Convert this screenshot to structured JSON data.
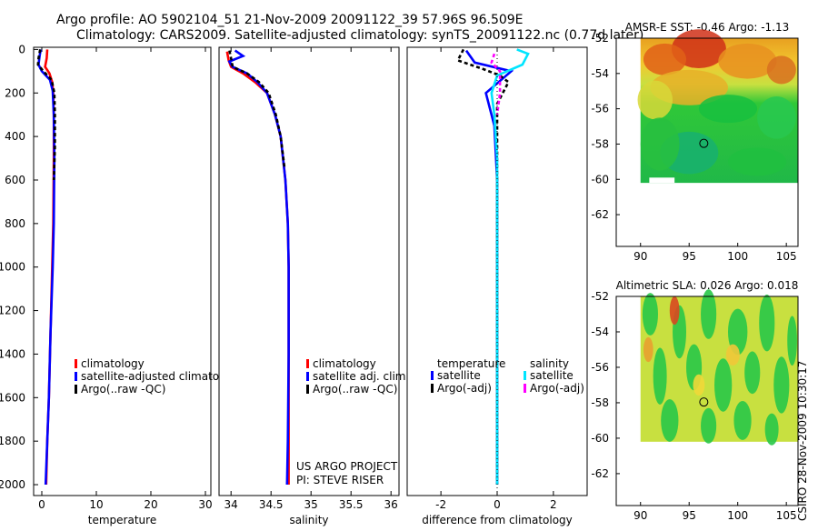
{
  "header": {
    "line1": "Argo profile: AO 5902104_51 21-Nov-2009 20091122_39 57.96S 96.509E",
    "line2": "Climatology: CARS2009. Satellite-adjusted climatology: synTS_20091122.nc (0.77d later)"
  },
  "colors": {
    "red": "#ff0000",
    "blue": "#0000ff",
    "black": "#000000",
    "cyan": "#00e5ff",
    "magenta": "#ff00ff"
  },
  "chart_data": [
    {
      "type": "line",
      "id": "temperature",
      "xlabel": "temperature",
      "xlim": [
        -1.5,
        31
      ],
      "ylim": [
        2050,
        -10
      ],
      "xticks": [
        {
          "v": 0,
          "label": "0"
        },
        {
          "v": 10,
          "label": "10"
        },
        {
          "v": 20,
          "label": "20"
        },
        {
          "v": 30,
          "label": "30"
        }
      ],
      "yticks": [
        {
          "v": 0,
          "label": "0"
        },
        {
          "v": 200,
          "label": "200"
        },
        {
          "v": 400,
          "label": "400"
        },
        {
          "v": 600,
          "label": "600"
        },
        {
          "v": 800,
          "label": "800"
        },
        {
          "v": 1000,
          "label": "1000"
        },
        {
          "v": 1200,
          "label": "1200"
        },
        {
          "v": 1400,
          "label": "1400"
        },
        {
          "v": 1600,
          "label": "1600"
        },
        {
          "v": 1800,
          "label": "1800"
        },
        {
          "v": 2000,
          "label": "2000"
        }
      ],
      "series": [
        {
          "name": "climatology",
          "color": "red",
          "dash": false,
          "points": [
            [
              1.0,
              0
            ],
            [
              0.9,
              40
            ],
            [
              0.6,
              80
            ],
            [
              1.4,
              110
            ],
            [
              1.9,
              150
            ],
            [
              2.1,
              200
            ],
            [
              2.2,
              300
            ],
            [
              2.2,
              500
            ],
            [
              2.1,
              800
            ],
            [
              1.9,
              1000
            ],
            [
              1.6,
              1300
            ],
            [
              1.3,
              1600
            ],
            [
              1.0,
              1800
            ],
            [
              0.8,
              2000
            ]
          ]
        },
        {
          "name": "satellite-adjusted climatology",
          "color": "blue",
          "dash": false,
          "points": [
            [
              -0.2,
              0
            ],
            [
              -0.4,
              30
            ],
            [
              -0.6,
              70
            ],
            [
              0.0,
              100
            ],
            [
              1.5,
              140
            ],
            [
              2.0,
              190
            ],
            [
              2.2,
              300
            ],
            [
              2.3,
              500
            ],
            [
              2.2,
              800
            ],
            [
              2.0,
              1000
            ],
            [
              1.6,
              1300
            ],
            [
              1.3,
              1600
            ],
            [
              1.0,
              1800
            ],
            [
              0.7,
              2000
            ]
          ]
        },
        {
          "name": "Argo(..raw -QC)",
          "color": "black",
          "dash": true,
          "points": [
            [
              -0.3,
              0
            ],
            [
              -0.6,
              40
            ],
            [
              -0.7,
              70
            ],
            [
              0.3,
              100
            ],
            [
              1.8,
              140
            ],
            [
              2.3,
              200
            ],
            [
              2.4,
              300
            ],
            [
              2.4,
              450
            ],
            [
              2.2,
              600
            ]
          ]
        }
      ],
      "legend": [
        {
          "color": "red",
          "label": "climatology"
        },
        {
          "color": "blue",
          "label": "satellite-adjusted climatology"
        },
        {
          "color": "black",
          "label": "Argo(..raw -QC)"
        }
      ]
    },
    {
      "type": "line",
      "id": "salinity",
      "xlabel": "salinity",
      "xlim": [
        33.85,
        36.1
      ],
      "ylim": [
        2050,
        -10
      ],
      "xticks": [
        {
          "v": 34,
          "label": "34"
        },
        {
          "v": 34.5,
          "label": "34.5"
        },
        {
          "v": 35,
          "label": "35"
        },
        {
          "v": 35.5,
          "label": "35.5"
        },
        {
          "v": 36,
          "label": "36"
        }
      ],
      "series": [
        {
          "name": "climatology",
          "color": "red",
          "dash": false,
          "points": [
            [
              33.95,
              10
            ],
            [
              33.97,
              50
            ],
            [
              34.0,
              80
            ],
            [
              34.15,
              110
            ],
            [
              34.3,
              150
            ],
            [
              34.45,
              200
            ],
            [
              34.55,
              300
            ],
            [
              34.62,
              400
            ],
            [
              34.68,
              600
            ],
            [
              34.71,
              800
            ],
            [
              34.72,
              1000
            ],
            [
              34.72,
              1400
            ],
            [
              34.72,
              2000
            ]
          ]
        },
        {
          "name": "satellite adj. clim.",
          "color": "blue",
          "dash": false,
          "points": [
            [
              34.05,
              5
            ],
            [
              34.15,
              30
            ],
            [
              33.98,
              55
            ],
            [
              34.02,
              80
            ],
            [
              34.2,
              110
            ],
            [
              34.33,
              150
            ],
            [
              34.45,
              200
            ],
            [
              34.55,
              300
            ],
            [
              34.62,
              400
            ],
            [
              34.68,
              600
            ],
            [
              34.71,
              800
            ],
            [
              34.72,
              1000
            ],
            [
              34.72,
              1400
            ],
            [
              34.71,
              1800
            ],
            [
              34.7,
              2000
            ]
          ]
        },
        {
          "name": "Argo(..raw -QC)",
          "color": "black",
          "dash": true,
          "points": [
            [
              33.98,
              5
            ],
            [
              34.0,
              40
            ],
            [
              34.02,
              80
            ],
            [
              34.2,
              110
            ],
            [
              34.35,
              150
            ],
            [
              34.47,
              200
            ],
            [
              34.56,
              300
            ],
            [
              34.62,
              400
            ],
            [
              34.67,
              550
            ]
          ]
        }
      ],
      "legend": [
        {
          "color": "red",
          "label": "climatology"
        },
        {
          "color": "blue",
          "label": "satellite adj. clim."
        },
        {
          "color": "black",
          "label": "Argo(..raw -QC)"
        }
      ],
      "annotation": [
        "US ARGO PROJECT",
        "PI: STEVE RISER"
      ]
    },
    {
      "type": "line",
      "id": "difference",
      "xlabel": "difference from climatology",
      "xlim": [
        -3.2,
        3.2
      ],
      "ylim": [
        2050,
        -10
      ],
      "xticks": [
        {
          "v": -2,
          "label": "-2"
        },
        {
          "v": 0,
          "label": "0"
        },
        {
          "v": 2,
          "label": "2"
        }
      ],
      "series": [
        {
          "name": "temperature satellite",
          "color": "blue",
          "dash": false,
          "points": [
            [
              -1.1,
              5
            ],
            [
              -0.8,
              60
            ],
            [
              0.5,
              100
            ],
            [
              -0.4,
              200
            ],
            [
              -0.1,
              350
            ],
            [
              0.0,
              600
            ],
            [
              0.0,
              1000
            ],
            [
              0.0,
              2000
            ]
          ]
        },
        {
          "name": "temperature Argo(-adj)",
          "color": "black",
          "dash": true,
          "points": [
            [
              -1.2,
              0
            ],
            [
              -1.4,
              50
            ],
            [
              -0.5,
              90
            ],
            [
              0.1,
              120
            ],
            [
              0.4,
              150
            ],
            [
              0.2,
              200
            ],
            [
              0.0,
              250
            ],
            [
              0.0,
              600
            ],
            [
              0.0,
              1000
            ],
            [
              0.0,
              2000
            ]
          ]
        },
        {
          "name": "salinity satellite",
          "color": "cyan",
          "dash": false,
          "points": [
            [
              0.7,
              0
            ],
            [
              1.1,
              20
            ],
            [
              0.9,
              70
            ],
            [
              0.0,
              120
            ],
            [
              -0.2,
              200
            ],
            [
              -0.1,
              300
            ],
            [
              0.0,
              500
            ],
            [
              0.0,
              1000
            ],
            [
              0.0,
              1500
            ],
            [
              0.0,
              2000
            ]
          ]
        },
        {
          "name": "salinity Argo(-adj)",
          "color": "magenta",
          "dash": true,
          "points": [
            [
              -0.1,
              20
            ],
            [
              -0.2,
              60
            ],
            [
              0.1,
              100
            ],
            [
              0.1,
              200
            ],
            [
              0.0,
              300
            ]
          ]
        }
      ],
      "legend": {
        "left_header": "temperature",
        "right_header": "salinity",
        "left": [
          {
            "color": "blue",
            "label": "satellite"
          },
          {
            "color": "black",
            "label": "Argo(-adj)"
          }
        ],
        "right": [
          {
            "color": "cyan",
            "label": "satellite"
          },
          {
            "color": "magenta",
            "label": "Argo(-adj)"
          }
        ]
      }
    },
    {
      "type": "heatmap",
      "id": "sst-map",
      "title": "AMSR-E SST: -0.46 Argo: -1.13",
      "xlim": [
        87.5,
        106.2
      ],
      "ylim": [
        -63.8,
        -52
      ],
      "xticks": [
        {
          "v": 90,
          "label": "90"
        },
        {
          "v": 95,
          "label": "95"
        },
        {
          "v": 100,
          "label": "100"
        },
        {
          "v": 105,
          "label": "105"
        }
      ],
      "yticks": [
        {
          "v": -52,
          "label": "-52"
        },
        {
          "v": -54,
          "label": "-54"
        },
        {
          "v": -56,
          "label": "-56"
        },
        {
          "v": -58,
          "label": "-58"
        },
        {
          "v": -60,
          "label": "-60"
        },
        {
          "v": -62,
          "label": "-62"
        }
      ],
      "data_extent": {
        "lon": [
          90,
          106.2
        ],
        "lat": [
          -60.2,
          -52
        ]
      },
      "marker": {
        "lon": 96.509,
        "lat": -57.96
      },
      "missing": [
        [
          90.9,
          93.5,
          -60.2,
          -59.9
        ]
      ]
    },
    {
      "type": "heatmap",
      "id": "sla-map",
      "title": "Altimetric SLA: 0.026 Argo: 0.018",
      "xlim": [
        87.5,
        106.2
      ],
      "ylim": [
        -63.8,
        -52
      ],
      "xticks": [
        {
          "v": 90,
          "label": "90"
        },
        {
          "v": 95,
          "label": "95"
        },
        {
          "v": 100,
          "label": "100"
        },
        {
          "v": 105,
          "label": "105"
        }
      ],
      "yticks": [
        {
          "v": -52,
          "label": "-52"
        },
        {
          "v": -54,
          "label": "-54"
        },
        {
          "v": -56,
          "label": "-56"
        },
        {
          "v": -58,
          "label": "-58"
        },
        {
          "v": -60,
          "label": "-60"
        },
        {
          "v": -62,
          "label": "-62"
        }
      ],
      "data_extent": {
        "lon": [
          90,
          106.2
        ],
        "lat": [
          -60.2,
          -52
        ]
      },
      "marker": {
        "lon": 96.509,
        "lat": -57.96
      }
    }
  ],
  "footer_stamp": "CSIRO 28-Nov-2009 10:30:17"
}
